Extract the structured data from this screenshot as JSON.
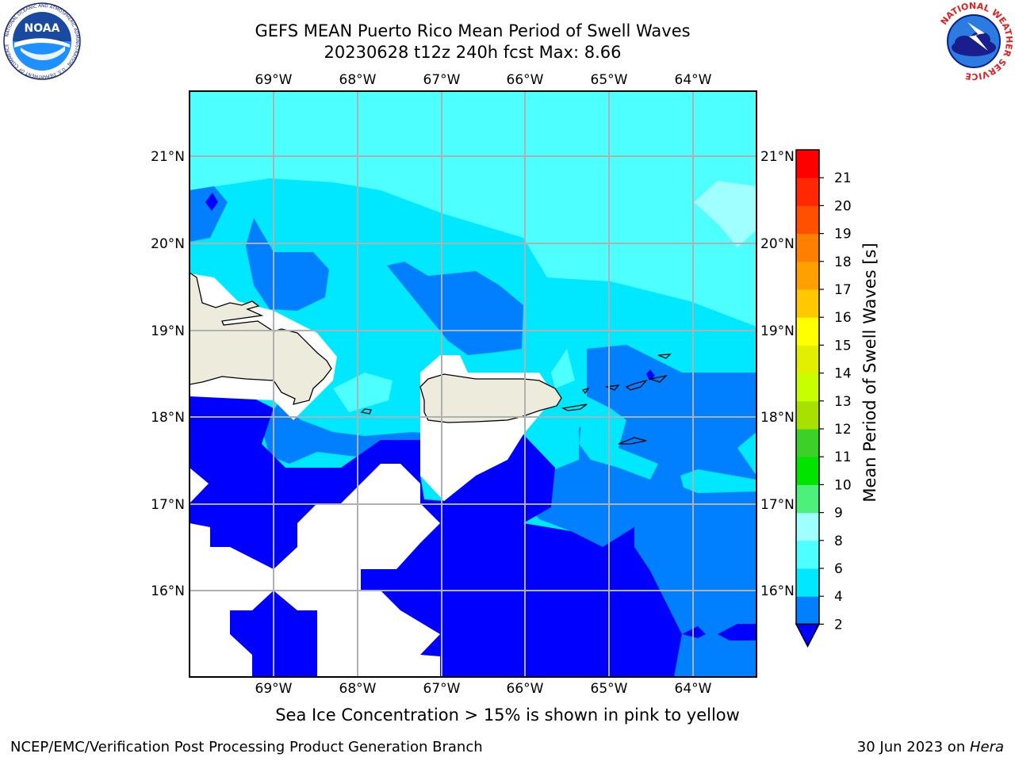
{
  "title": {
    "line1": "GEFS MEAN Puerto Rico Mean Period of Swell Waves",
    "line2": "20230628 t12z 240h fcst   Max: 8.66"
  },
  "logos": {
    "left": "noaa-logo",
    "right": "nws-logo",
    "left_ring_text": "NATIONAL OCEANIC AND ATMOSPHERIC ADMINISTRATION · U.S. DEPARTMENT OF COMMERCE",
    "left_center_text": "NOAA",
    "right_ring_text": "NATIONAL WEATHER SERVICE"
  },
  "map": {
    "lon_labels": [
      "69°W",
      "68°W",
      "67°W",
      "66°W",
      "65°W",
      "64°W"
    ],
    "lat_labels": [
      "21°N",
      "20°N",
      "19°N",
      "18°N",
      "17°N",
      "16°N"
    ],
    "lon_range": [
      -70.0,
      -63.25
    ],
    "lat_range": [
      15.05,
      21.75
    ],
    "land_color": "#ecebdc",
    "no_data_color": "#ffffff"
  },
  "colorbar": {
    "label": "Mean Period of Swell Waves [s]",
    "ticks": [
      "2",
      "4",
      "6",
      "8",
      "9",
      "10",
      "11",
      "12",
      "13",
      "14",
      "15",
      "16",
      "17",
      "18",
      "19",
      "20",
      "21"
    ],
    "bins": [
      {
        "from": 2,
        "to": 4,
        "color": "#0080ff"
      },
      {
        "from": 4,
        "to": 6,
        "color": "#00e8ff"
      },
      {
        "from": 6,
        "to": 8,
        "color": "#4dffff"
      },
      {
        "from": 8,
        "to": 9,
        "color": "#a0ffff"
      },
      {
        "from": 9,
        "to": 10,
        "color": "#4cf07a"
      },
      {
        "from": 10,
        "to": 11,
        "color": "#00e400"
      },
      {
        "from": 11,
        "to": 12,
        "color": "#3cd028"
      },
      {
        "from": 12,
        "to": 13,
        "color": "#a8e000"
      },
      {
        "from": 13,
        "to": 14,
        "color": "#c8ff00"
      },
      {
        "from": 14,
        "to": 15,
        "color": "#e0f000"
      },
      {
        "from": 15,
        "to": 16,
        "color": "#ffff00"
      },
      {
        "from": 16,
        "to": 17,
        "color": "#ffc800"
      },
      {
        "from": 17,
        "to": 18,
        "color": "#ffa000"
      },
      {
        "from": 18,
        "to": 19,
        "color": "#ff8000"
      },
      {
        "from": 19,
        "to": 20,
        "color": "#ff5000"
      },
      {
        "from": 20,
        "to": 21,
        "color": "#ff2800"
      },
      {
        "from": 21,
        "to": 22,
        "color": "#ff0000"
      }
    ],
    "under_color": "#0000ff"
  },
  "ice_note": "Sea Ice Concentration > 15% is shown in pink to yellow",
  "footer": {
    "left": "NCEP/EMC/Verification Post Processing Product Generation Branch",
    "right_prefix": "30 Jun 2023 on ",
    "right_machine": "Hera"
  }
}
